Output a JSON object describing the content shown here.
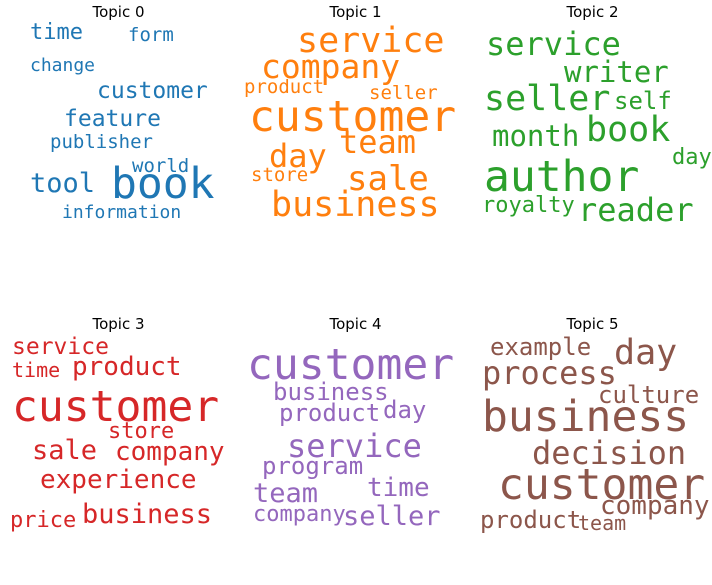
{
  "topics": [
    {
      "title": "Topic 0",
      "color": "#1f77b4",
      "words": [
        "time",
        "form",
        "change",
        "customer",
        "feature",
        "publisher",
        "world",
        "tool",
        "book",
        "information"
      ]
    },
    {
      "title": "Topic 1",
      "color": "#ff7f0e",
      "words": [
        "service",
        "company",
        "product",
        "seller",
        "customer",
        "team",
        "day",
        "store",
        "sale",
        "business"
      ]
    },
    {
      "title": "Topic 2",
      "color": "#2ca02c",
      "words": [
        "service",
        "writer",
        "seller",
        "self",
        "month",
        "book",
        "day",
        "author",
        "royalty",
        "reader"
      ]
    },
    {
      "title": "Topic 3",
      "color": "#d62728",
      "words": [
        "service",
        "time",
        "product",
        "customer",
        "store",
        "sale",
        "company",
        "experience",
        "price",
        "business"
      ]
    },
    {
      "title": "Topic 4",
      "color": "#9467bd",
      "words": [
        "customer",
        "business",
        "product",
        "day",
        "service",
        "program",
        "team",
        "time",
        "company",
        "seller"
      ]
    },
    {
      "title": "Topic 5",
      "color": "#8c564b",
      "words": [
        "example",
        "day",
        "process",
        "culture",
        "business",
        "decision",
        "customer",
        "company",
        "product",
        "team"
      ]
    }
  ]
}
